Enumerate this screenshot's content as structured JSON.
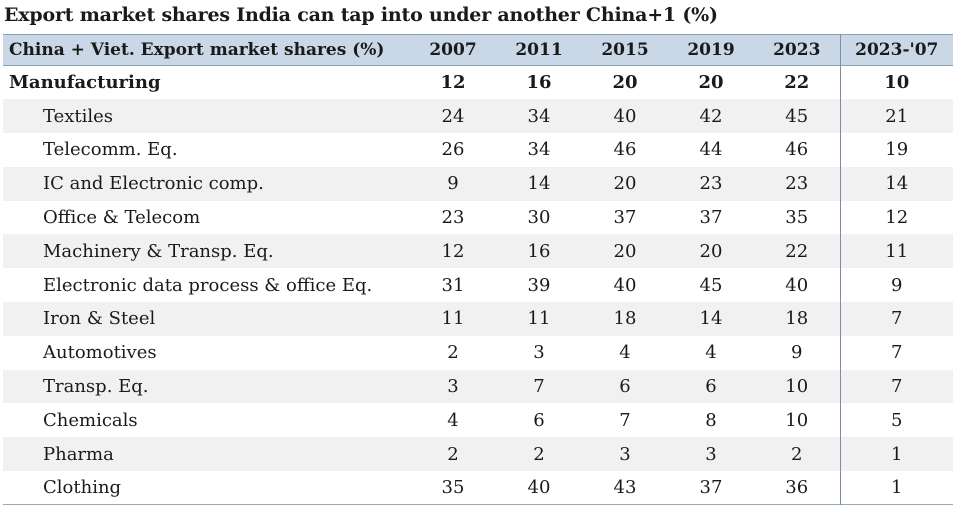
{
  "title": "Export market shares India can tap into under another China+1 (%)",
  "chart_data": {
    "type": "table",
    "columns": [
      "China + Viet. Export market shares (%)",
      "2007",
      "2011",
      "2015",
      "2019",
      "2023",
      "2023-'07"
    ],
    "rows": [
      {
        "label": "Manufacturing",
        "values": [
          "12",
          "16",
          "20",
          "20",
          "22",
          "10"
        ]
      },
      {
        "label": "Textiles",
        "values": [
          "24",
          "34",
          "40",
          "42",
          "45",
          "21"
        ]
      },
      {
        "label": "Telecomm. Eq.",
        "values": [
          "26",
          "34",
          "46",
          "44",
          "46",
          "19"
        ]
      },
      {
        "label": "IC and Electronic comp.",
        "values": [
          "9",
          "14",
          "20",
          "23",
          "23",
          "14"
        ]
      },
      {
        "label": "Office & Telecom",
        "values": [
          "23",
          "30",
          "37",
          "37",
          "35",
          "12"
        ]
      },
      {
        "label": "Machinery & Transp. Eq.",
        "values": [
          "12",
          "16",
          "20",
          "20",
          "22",
          "11"
        ]
      },
      {
        "label": "Electronic data process & office Eq.",
        "values": [
          "31",
          "39",
          "40",
          "45",
          "40",
          "9"
        ]
      },
      {
        "label": "Iron & Steel",
        "values": [
          "11",
          "11",
          "18",
          "14",
          "18",
          "7"
        ]
      },
      {
        "label": "Automotives",
        "values": [
          "2",
          "3",
          "4",
          "4",
          "9",
          "7"
        ]
      },
      {
        "label": "Transp. Eq.",
        "values": [
          "3",
          "7",
          "6",
          "6",
          "10",
          "7"
        ]
      },
      {
        "label": "Chemicals",
        "values": [
          "4",
          "6",
          "7",
          "8",
          "10",
          "5"
        ]
      },
      {
        "label": "Pharma",
        "values": [
          "2",
          "2",
          "3",
          "3",
          "2",
          "1"
        ]
      },
      {
        "label": "Clothing",
        "values": [
          "35",
          "40",
          "43",
          "37",
          "36",
          "1"
        ]
      }
    ]
  },
  "colors": {
    "header_bg": "#c9d7e6",
    "row_shade": "#f1f1f1",
    "divider": "#7c8ea6"
  }
}
